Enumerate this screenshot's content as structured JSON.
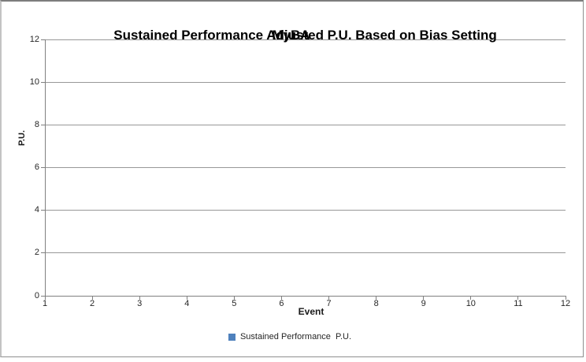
{
  "chart": {
    "title": "Sustained Performance Adjusted P.U. Based on Bias Setting",
    "overlay_text": "MyBA",
    "x_axis_title": "Event",
    "y_axis_title": "P.U.",
    "legend": {
      "label": "Sustained Performance  P.U.",
      "marker_color": "#4F81BD"
    }
  },
  "chart_data": {
    "type": "scatter",
    "title": "Sustained Performance Adjusted P.U. Based on Bias Setting",
    "overlay_text": "MyBA",
    "xlabel": "Event",
    "ylabel": "P.U.",
    "x_ticks": [
      1,
      2,
      3,
      4,
      5,
      6,
      7,
      8,
      9,
      10,
      11,
      12
    ],
    "y_ticks": [
      0,
      2,
      4,
      6,
      8,
      10,
      12
    ],
    "xlim": [
      1,
      12
    ],
    "ylim": [
      0,
      12
    ],
    "series": [
      {
        "name": "Sustained Performance  P.U.",
        "marker_color": "#4F81BD",
        "points": []
      }
    ],
    "grid": "horizontal-only",
    "legend_position": "bottom",
    "plot_area_empty": true
  },
  "colors": {
    "axis": "#808080",
    "gridline": "#989898",
    "tick_text": "#262626",
    "title_text": "#000000",
    "legend_marker": "#4F81BD"
  }
}
